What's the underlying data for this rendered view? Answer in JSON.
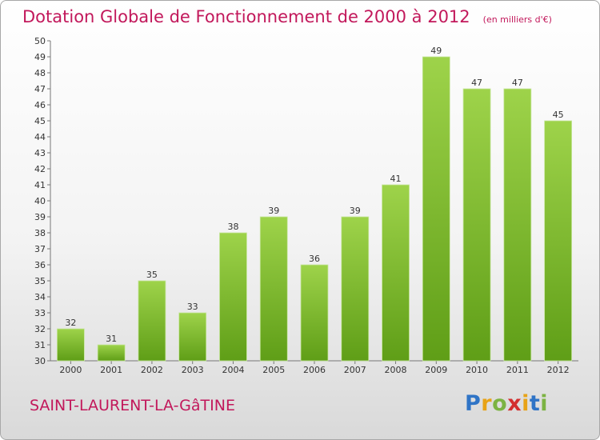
{
  "header": {
    "title": "Dotation Globale de Fonctionnement de 2000 à 2012",
    "unit": "(en milliers d'€)"
  },
  "commune": "SAINT-LAURENT-LA-GâTINE",
  "logo": {
    "text": "Proxiti",
    "letters": [
      {
        "ch": "P",
        "color": "#2f74c6"
      },
      {
        "ch": "r",
        "color": "#e8a317"
      },
      {
        "ch": "o",
        "color": "#7cb342"
      },
      {
        "ch": "x",
        "color": "#d32f2f"
      },
      {
        "ch": "i",
        "color": "#e8a317"
      },
      {
        "ch": "t",
        "color": "#2f74c6"
      },
      {
        "ch": "i",
        "color": "#7cb342"
      }
    ]
  },
  "chart_data": {
    "type": "bar",
    "categories": [
      "2000",
      "2001",
      "2002",
      "2003",
      "2004",
      "2005",
      "2006",
      "2007",
      "2008",
      "2009",
      "2010",
      "2011",
      "2012"
    ],
    "values": [
      32,
      31,
      35,
      33,
      38,
      39,
      36,
      39,
      41,
      49,
      47,
      47,
      45
    ],
    "ylim": [
      30,
      50
    ],
    "yticks": [
      30,
      31,
      32,
      33,
      34,
      35,
      36,
      37,
      38,
      39,
      40,
      41,
      42,
      43,
      44,
      45,
      46,
      47,
      48,
      49,
      50
    ],
    "grid": false,
    "bar_color": "#8cc63f"
  }
}
